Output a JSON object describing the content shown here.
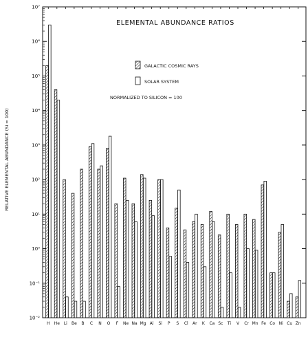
{
  "chart_data": {
    "type": "bar",
    "title": "ELEMENTAL ABUNDANCE RATIOS",
    "subtitle": "NORMALIZED TO SILICON = 100",
    "xlabel": "",
    "ylabel": "RELATIVE ELEMENTAL ABUNDANCE (Si = 100)",
    "yscale": "log",
    "ylim": [
      0.01,
      10000000
    ],
    "y_ticks": [
      {
        "value": 0.01,
        "label": "10⁻²"
      },
      {
        "value": 0.1,
        "label": "10⁻¹"
      },
      {
        "value": 1,
        "label": "10⁰"
      },
      {
        "value": 10,
        "label": "10¹"
      },
      {
        "value": 100,
        "label": "10²"
      },
      {
        "value": 1000,
        "label": "10³"
      },
      {
        "value": 10000,
        "label": "10⁴"
      },
      {
        "value": 100000,
        "label": "10⁵"
      },
      {
        "value": 1000000,
        "label": "10⁶"
      },
      {
        "value": 10000000,
        "label": "10⁷"
      }
    ],
    "legend_position": "top-center",
    "grid": false,
    "categories": [
      "H",
      "He",
      "Li",
      "Be",
      "B",
      "C",
      "N",
      "O",
      "F",
      "Ne",
      "Na",
      "Mg",
      "Al",
      "Si",
      "P",
      "S",
      "Cl",
      "Ar",
      "K",
      "Ca",
      "Sc",
      "Ti",
      "V",
      "Cr",
      "Mn",
      "Fe",
      "Co",
      "Ni",
      "Cu",
      "Zn"
    ],
    "series": [
      {
        "name": "GALACTIC COSMIC RAYS",
        "pattern": "hatched",
        "values": [
          200000,
          40000,
          100,
          40,
          200,
          900,
          200,
          800,
          20,
          110,
          20,
          140,
          25,
          100,
          4,
          15,
          3.5,
          6,
          5,
          12,
          2.5,
          10,
          5,
          10,
          7,
          70,
          0.2,
          3,
          0.03,
          0.04
        ]
      },
      {
        "name": "SOLAR SYSTEM",
        "pattern": "open",
        "values": [
          3000000,
          20000,
          0.04,
          0.03,
          0.03,
          1100,
          250,
          1800,
          0.08,
          25,
          6,
          110,
          9,
          100,
          0.6,
          50,
          0.4,
          10,
          0.3,
          6,
          0.02,
          0.2,
          0.02,
          1,
          0.9,
          90,
          0.2,
          5,
          0.05,
          0.12
        ]
      }
    ]
  }
}
